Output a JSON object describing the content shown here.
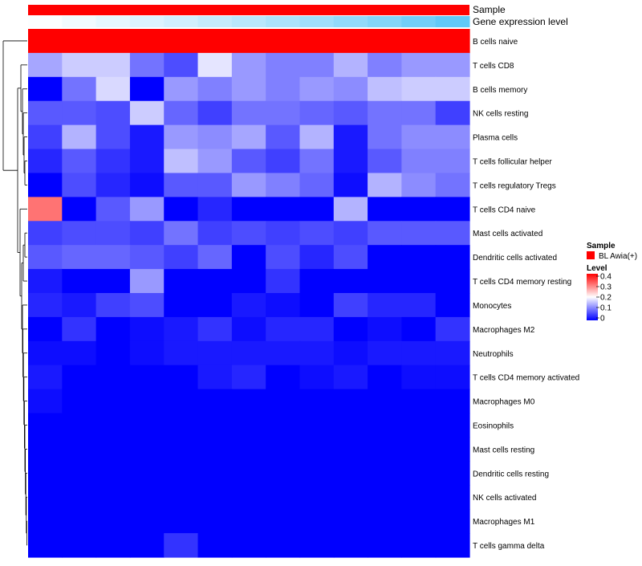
{
  "chart_data": {
    "type": "heatmap",
    "title": "",
    "xlabel": "",
    "ylabel": "",
    "annotation_labels": {
      "sample": "Sample",
      "gene_expression": "Gene expression level"
    },
    "sample_annotation": {
      "value": "BL Awia(+)",
      "color": "#ff0000"
    },
    "gene_expression_annotation": [
      0.02,
      0.08,
      0.14,
      0.2,
      0.26,
      0.33,
      0.4,
      0.47,
      0.54,
      0.62,
      0.7,
      0.8,
      0.9
    ],
    "gene_expression_colors": {
      "low": "#ffffff",
      "high": "#4fc3f7"
    },
    "legend": {
      "placement": "right",
      "sample_title": "Sample",
      "sample_entry": "BL Awia(+)",
      "level_title": "Level",
      "ticks": [
        "0.4",
        "0.3",
        "0.2",
        "0.1",
        "0"
      ]
    },
    "color_scale": {
      "min": 0,
      "mid": 0.2,
      "max": 0.4,
      "low_color": "#0000ff",
      "mid_color": "#ffffff",
      "high_color": "#ff0000"
    },
    "rows": [
      "B cells naive",
      "T cells CD8",
      "B cells memory",
      "NK cells resting",
      "Plasma cells",
      "T cells follicular helper",
      "T cells regulatory  Tregs",
      "T cells CD4 naive",
      "Mast cells activated",
      "Dendritic cells activated",
      "T cells CD4 memory resting",
      "Monocytes",
      "Macrophages M2",
      "Neutrophils",
      "T cells CD4 memory activated",
      "Macrophages M0",
      "Eosinophils",
      "Mast cells resting",
      "Dendritic cells resting",
      "NK cells activated",
      "Macrophages M1",
      "T cells gamma delta"
    ],
    "values": [
      [
        0.43,
        0.43,
        0.46,
        0.4,
        0.47,
        0.55,
        0.57,
        0.4,
        0.46,
        0.4,
        0.58,
        0.58,
        0.58
      ],
      [
        0.13,
        0.16,
        0.16,
        0.09,
        0.06,
        0.18,
        0.12,
        0.1,
        0.1,
        0.14,
        0.1,
        0.12,
        0.12
      ],
      [
        0.0,
        0.09,
        0.17,
        0.0,
        0.12,
        0.1,
        0.12,
        0.1,
        0.12,
        0.11,
        0.15,
        0.16,
        0.16
      ],
      [
        0.07,
        0.07,
        0.06,
        0.16,
        0.08,
        0.05,
        0.09,
        0.09,
        0.08,
        0.07,
        0.09,
        0.09,
        0.05
      ],
      [
        0.05,
        0.14,
        0.06,
        0.02,
        0.12,
        0.11,
        0.13,
        0.07,
        0.14,
        0.02,
        0.09,
        0.11,
        0.11
      ],
      [
        0.03,
        0.07,
        0.04,
        0.02,
        0.15,
        0.12,
        0.07,
        0.05,
        0.09,
        0.02,
        0.07,
        0.1,
        0.1
      ],
      [
        0.0,
        0.06,
        0.03,
        0.01,
        0.07,
        0.07,
        0.12,
        0.1,
        0.08,
        0.01,
        0.14,
        0.11,
        0.09
      ],
      [
        0.31,
        0.0,
        0.07,
        0.12,
        0.0,
        0.03,
        0.0,
        0.0,
        0.0,
        0.14,
        0.0,
        0.0,
        0.0
      ],
      [
        0.05,
        0.06,
        0.06,
        0.05,
        0.09,
        0.05,
        0.06,
        0.05,
        0.06,
        0.05,
        0.07,
        0.07,
        0.07
      ],
      [
        0.07,
        0.08,
        0.08,
        0.07,
        0.05,
        0.08,
        0.0,
        0.06,
        0.03,
        0.06,
        0.0,
        0.0,
        0.0
      ],
      [
        0.02,
        0.0,
        0.0,
        0.12,
        0.0,
        0.0,
        0.0,
        0.04,
        0.0,
        0.0,
        0.0,
        0.0,
        0.0
      ],
      [
        0.03,
        0.02,
        0.05,
        0.06,
        0.0,
        0.0,
        0.02,
        0.01,
        0.0,
        0.05,
        0.03,
        0.03,
        0.0
      ],
      [
        0.0,
        0.04,
        0.0,
        0.01,
        0.02,
        0.04,
        0.01,
        0.03,
        0.03,
        0.0,
        0.01,
        0.0,
        0.04
      ],
      [
        0.01,
        0.01,
        0.0,
        0.01,
        0.02,
        0.02,
        0.02,
        0.02,
        0.02,
        0.01,
        0.02,
        0.02,
        0.02
      ],
      [
        0.02,
        0.0,
        0.0,
        0.0,
        0.0,
        0.02,
        0.03,
        0.0,
        0.01,
        0.02,
        0.0,
        0.01,
        0.01
      ],
      [
        0.01,
        0.0,
        0.0,
        0.0,
        0.0,
        0.0,
        0.0,
        0.0,
        0.0,
        0.0,
        0.0,
        0.0,
        0.0
      ],
      [
        0.0,
        0.0,
        0.0,
        0.0,
        0.0,
        0.0,
        0.0,
        0.0,
        0.0,
        0.0,
        0.0,
        0.0,
        0.0
      ],
      [
        0.0,
        0.0,
        0.0,
        0.0,
        0.0,
        0.0,
        0.0,
        0.0,
        0.0,
        0.0,
        0.0,
        0.0,
        0.0
      ],
      [
        0.0,
        0.0,
        0.0,
        0.0,
        0.0,
        0.0,
        0.0,
        0.0,
        0.0,
        0.0,
        0.0,
        0.0,
        0.0
      ],
      [
        0.0,
        0.0,
        0.0,
        0.0,
        0.0,
        0.0,
        0.0,
        0.0,
        0.0,
        0.0,
        0.0,
        0.0,
        0.0
      ],
      [
        0.0,
        0.0,
        0.0,
        0.0,
        0.0,
        0.0,
        0.0,
        0.0,
        0.0,
        0.0,
        0.0,
        0.0,
        0.0
      ],
      [
        0.0,
        0.0,
        0.0,
        0.0,
        0.04,
        0.0,
        0.0,
        0.0,
        0.0,
        0.0,
        0.0,
        0.0,
        0.0
      ]
    ],
    "row_dendrogram": true,
    "column_dendrogram": false
  }
}
